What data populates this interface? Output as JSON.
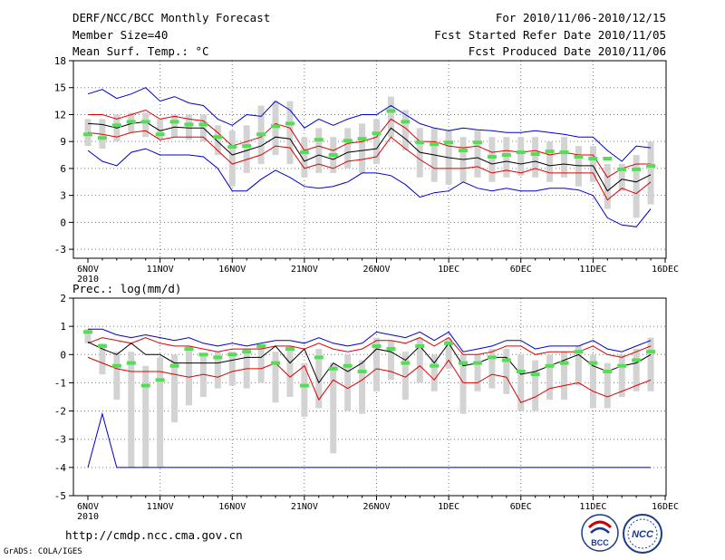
{
  "header": {
    "title": "DERF/NCC/BCC Monthly Forecast",
    "member_size": "Member Size=40",
    "variable": "Mean Surf. Temp.: °C",
    "period": "For 2010/11/06-2010/12/15",
    "fcst_started": "Fcst Started Refer Date 2010/11/05",
    "fcst_produced": "Fcst Produced Date 2010/11/06"
  },
  "footer": {
    "url": "http://cmdp.ncc.cma.gov.cn",
    "grads": "GrADS: COLA/IGES",
    "logo_bcc": "BCC",
    "logo_ncc": "NCC"
  },
  "colors": {
    "box": "#d3d3d3",
    "median": "#55dd55",
    "mean": "#000000",
    "std": "#dd0000",
    "extreme": "#0000cc"
  },
  "chart_data": [
    {
      "type": "line",
      "title": "Mean Surf. Temp.: °C",
      "ylim": [
        -4,
        18
      ],
      "yticks": [
        18,
        15,
        12,
        9,
        6,
        3,
        0,
        -3
      ],
      "xticks": [
        "6NOV",
        "11NOV",
        "16NOV",
        "21NOV",
        "26NOV",
        "1DEC",
        "6DEC",
        "11DEC",
        "16DEC"
      ],
      "year_label": "2010",
      "x_days": 40,
      "series": [
        {
          "name": "max",
          "values": [
            14.3,
            14.8,
            13.8,
            14.3,
            15,
            13.5,
            14,
            13.3,
            13,
            11.5,
            10.8,
            12,
            11.8,
            13.5,
            12.5,
            10.5,
            11.5,
            10.8,
            11.5,
            12,
            12,
            13,
            12,
            11,
            10.5,
            10.2,
            10.5,
            10.3,
            10.2,
            10,
            10,
            10.2,
            10,
            9.8,
            9.5,
            9.5,
            8,
            6.8,
            8.5,
            8.3
          ]
        },
        {
          "name": "mean_plus_std",
          "values": [
            12,
            12,
            11.5,
            12,
            12.5,
            11.5,
            11.8,
            11.5,
            11.3,
            10,
            8.5,
            9,
            9.5,
            11,
            10.5,
            8,
            8.5,
            8,
            8.8,
            9,
            9.5,
            11.5,
            10.5,
            9,
            9,
            8.5,
            8.3,
            8.5,
            7.8,
            8,
            7.8,
            8,
            7.5,
            7.8,
            7.5,
            7.5,
            5,
            6,
            6.5,
            6.5
          ]
        },
        {
          "name": "mean",
          "values": [
            11,
            10.9,
            10.5,
            11,
            11.2,
            10.2,
            10.6,
            10.5,
            10.5,
            9,
            7.5,
            8,
            8.5,
            9.5,
            9.3,
            6.8,
            7.5,
            7,
            7.8,
            8,
            8.2,
            10.5,
            9.3,
            7.8,
            7.5,
            7.2,
            7,
            7.2,
            6.5,
            6.8,
            6.5,
            6.8,
            6.3,
            6.5,
            6.3,
            6.3,
            3.5,
            4.8,
            4.5,
            5.3
          ]
        },
        {
          "name": "mean_minus_std",
          "values": [
            10,
            9.8,
            9.5,
            10,
            10.2,
            9.2,
            9.5,
            9.5,
            9.5,
            8,
            6.5,
            7,
            7.5,
            8.5,
            8.3,
            6,
            6.5,
            6,
            6.8,
            7,
            7.3,
            9.5,
            8.2,
            7,
            6,
            6,
            6,
            6.2,
            5.5,
            5.8,
            5.5,
            6,
            5.5,
            5.5,
            5.5,
            5.5,
            2.5,
            3.8,
            3.2,
            4.5
          ]
        },
        {
          "name": "min",
          "values": [
            8,
            6.8,
            6.3,
            7.8,
            8.2,
            7.5,
            7.5,
            7.5,
            7.3,
            6,
            3.5,
            3.5,
            4.8,
            5.8,
            5,
            4,
            3.8,
            4,
            4.5,
            5.5,
            5.5,
            5.2,
            4.2,
            2.8,
            3.3,
            3.5,
            4.5,
            3.8,
            3.5,
            3.8,
            3.5,
            3.5,
            3.8,
            3.8,
            3.6,
            3,
            0.5,
            -0.3,
            -0.5,
            1.5
          ]
        },
        {
          "name": "median",
          "values": [
            9.8,
            9.4,
            10.8,
            11.2,
            11.2,
            9.8,
            11.2,
            10.9,
            10.9,
            9.5,
            8.4,
            8.5,
            9.8,
            10.7,
            11,
            7.8,
            9.2,
            7.5,
            9.1,
            9.3,
            9.9,
            12.4,
            11.2,
            8.9,
            8.7,
            8.9,
            8,
            8.9,
            7.3,
            7.5,
            7.8,
            7.6,
            7.9,
            7.8,
            7.3,
            7.1,
            7.1,
            5.9,
            5.9,
            6.3
          ]
        }
      ],
      "boxes": [
        {
          "low": 8.5,
          "high": 11.5
        },
        {
          "low": 8.2,
          "high": 11.5
        },
        {
          "low": 9,
          "high": 12
        },
        {
          "low": 10,
          "high": 12.2
        },
        {
          "low": 9.5,
          "high": 12.2
        },
        {
          "low": 9.3,
          "high": 11.5
        },
        {
          "low": 9.5,
          "high": 12
        },
        {
          "low": 9.2,
          "high": 12
        },
        {
          "low": 9,
          "high": 12
        },
        {
          "low": 7.5,
          "high": 10.8
        },
        {
          "low": 4,
          "high": 10.2
        },
        {
          "low": 5.5,
          "high": 10.8
        },
        {
          "low": 6.5,
          "high": 13
        },
        {
          "low": 7.5,
          "high": 13.5
        },
        {
          "low": 6.5,
          "high": 13.5
        },
        {
          "low": 5,
          "high": 9.5
        },
        {
          "low": 5.5,
          "high": 10.5
        },
        {
          "low": 5.5,
          "high": 9.5
        },
        {
          "low": 6,
          "high": 10.5
        },
        {
          "low": 5.5,
          "high": 11
        },
        {
          "low": 6.5,
          "high": 11.5
        },
        {
          "low": 9.5,
          "high": 14
        },
        {
          "low": 8,
          "high": 12.5
        },
        {
          "low": 5,
          "high": 10.5
        },
        {
          "low": 4.5,
          "high": 10.5
        },
        {
          "low": 4.2,
          "high": 10.2
        },
        {
          "low": 4.5,
          "high": 9.5
        },
        {
          "low": 5,
          "high": 10.2
        },
        {
          "low": 4.5,
          "high": 9.5
        },
        {
          "low": 5,
          "high": 9.5
        },
        {
          "low": 5.2,
          "high": 9.5
        },
        {
          "low": 5,
          "high": 9.5
        },
        {
          "low": 4.5,
          "high": 9
        },
        {
          "low": 5,
          "high": 9.5
        },
        {
          "low": 4,
          "high": 8.5
        },
        {
          "low": 4.5,
          "high": 8.5
        },
        {
          "low": 1.5,
          "high": 6.5
        },
        {
          "low": 3.5,
          "high": 6.5
        },
        {
          "low": 0.5,
          "high": 7.5
        },
        {
          "low": 2,
          "high": 9
        }
      ]
    },
    {
      "type": "line",
      "title": "Prec.: log(mm/d)",
      "ylim": [
        -5,
        2
      ],
      "yticks": [
        2,
        1,
        0,
        -1,
        -2,
        -3,
        -4,
        -5
      ],
      "xticks": [
        "6NOV",
        "11NOV",
        "16NOV",
        "21NOV",
        "26NOV",
        "1DEC",
        "6DEC",
        "11DEC",
        "16DEC"
      ],
      "year_label": "2010",
      "x_days": 40,
      "series": [
        {
          "name": "max",
          "values": [
            0.9,
            0.9,
            0.7,
            0.6,
            0.7,
            0.6,
            0.5,
            0.6,
            0.4,
            0.3,
            0.4,
            0.3,
            0.4,
            0.5,
            0.5,
            0.4,
            0.6,
            0.4,
            0.3,
            0.4,
            0.8,
            0.7,
            0.6,
            0.8,
            0.5,
            0.8,
            0.1,
            0.2,
            0.3,
            0.5,
            0.5,
            0.2,
            0.3,
            0.3,
            0.3,
            0.5,
            0.2,
            0.1,
            0.3,
            0.5
          ]
        },
        {
          "name": "mean_plus_std",
          "values": [
            0.4,
            0.6,
            0.5,
            0.4,
            0.6,
            0.4,
            0.3,
            0.3,
            0.2,
            0.1,
            0.2,
            0.2,
            0.2,
            0.3,
            0.3,
            0.2,
            0.4,
            0.2,
            0.1,
            0.2,
            0.5,
            0.5,
            0.4,
            0.6,
            0.3,
            0.6,
            0,
            0,
            0.1,
            0.3,
            0.3,
            0,
            0.1,
            0.1,
            0.1,
            0.3,
            0,
            -0.1,
            0.1,
            0.3
          ]
        },
        {
          "name": "mean",
          "values": [
            0.45,
            0.2,
            0,
            0.4,
            0,
            0,
            -0.3,
            -0.3,
            -0.3,
            -0.3,
            -0.2,
            -0.1,
            -0.1,
            0.3,
            -0.3,
            0.2,
            -1,
            -0.3,
            -0.6,
            -0.3,
            0.2,
            0.1,
            -0.2,
            0.3,
            -0.3,
            0.4,
            -0.4,
            -0.3,
            -0.1,
            -0.1,
            -0.7,
            -0.6,
            -0.4,
            -0.2,
            0,
            -0.4,
            -0.6,
            -0.4,
            -0.3,
            0
          ]
        },
        {
          "name": "mean_minus_std",
          "values": [
            -0.1,
            -0.3,
            -0.5,
            -0.6,
            -0.6,
            -0.6,
            -0.7,
            -0.8,
            -0.7,
            -0.8,
            -0.6,
            -0.5,
            -0.5,
            -0.3,
            -0.8,
            -0.4,
            -1.6,
            -0.9,
            -1.2,
            -0.9,
            -0.5,
            -0.6,
            -0.8,
            -0.4,
            -0.9,
            -0.2,
            -1,
            -1,
            -0.7,
            -0.8,
            -1.7,
            -1.5,
            -1.2,
            -1.1,
            -1,
            -1.3,
            -1.5,
            -1.3,
            -1.1,
            -0.9
          ]
        },
        {
          "name": "min",
          "values": [
            -4,
            -2.1,
            -4,
            -4,
            -4,
            -4,
            -4,
            -4,
            -4,
            -4,
            -4,
            -4,
            -4,
            -4,
            -4,
            -4,
            -4,
            -4,
            -4,
            -4,
            -4,
            -4,
            -4,
            -4,
            -4,
            -4,
            -4,
            -4,
            -4,
            -4,
            -4,
            -4,
            -4,
            -4,
            -4,
            -4,
            -4,
            -4,
            -4,
            -4
          ]
        },
        {
          "name": "median",
          "values": [
            0.8,
            0.3,
            -0.4,
            -0.3,
            -1.1,
            -0.9,
            -0.4,
            0.2,
            0,
            -0.1,
            0,
            0.1,
            0.3,
            -0.3,
            0.2,
            -1.1,
            -0.1,
            -0.5,
            -0.4,
            -0.6,
            0.3,
            0.2,
            -0.3,
            0.3,
            -0.4,
            0.4,
            -0.3,
            -0.3,
            -0.1,
            -0.2,
            -0.6,
            -0.7,
            -0.4,
            -0.3,
            0.1,
            -0.3,
            -0.6,
            -0.4,
            -0.2,
            0.1
          ]
        }
      ],
      "boxes": [
        {
          "low": 0.4,
          "high": 0.9
        },
        {
          "low": -0.7,
          "high": 0.4
        },
        {
          "low": -1.6,
          "high": 0.1
        },
        {
          "low": -4,
          "high": 0.1
        },
        {
          "low": -4,
          "high": -0.4
        },
        {
          "low": -4,
          "high": -0.1
        },
        {
          "low": -2.4,
          "high": 0
        },
        {
          "low": -1.8,
          "high": 0.3
        },
        {
          "low": -1.5,
          "high": 0
        },
        {
          "low": -1.2,
          "high": 0.1
        },
        {
          "low": -1.1,
          "high": 0.1
        },
        {
          "low": -1.2,
          "high": 0.2
        },
        {
          "low": -1,
          "high": 0.3
        },
        {
          "low": -1.7,
          "high": 0.1
        },
        {
          "low": -1.5,
          "high": 0.3
        },
        {
          "low": -2.2,
          "high": -0.3
        },
        {
          "low": -1.9,
          "high": 0.2
        },
        {
          "low": -3.5,
          "high": -0.3
        },
        {
          "low": -2,
          "high": 0
        },
        {
          "low": -2.1,
          "high": -0.2
        },
        {
          "low": -1.3,
          "high": 0.6
        },
        {
          "low": -0.9,
          "high": 0.5
        },
        {
          "low": -1.6,
          "high": 0.1
        },
        {
          "low": -1,
          "high": 0.6
        },
        {
          "low": -1.3,
          "high": 0
        },
        {
          "low": -0.5,
          "high": 0.6
        },
        {
          "low": -2.1,
          "high": 0
        },
        {
          "low": -1.3,
          "high": 0
        },
        {
          "low": -1.2,
          "high": 0.2
        },
        {
          "low": -1.4,
          "high": 0.2
        },
        {
          "low": -2,
          "high": 0
        },
        {
          "low": -2,
          "high": -0.2
        },
        {
          "low": -1.6,
          "high": 0
        },
        {
          "low": -1.6,
          "high": 0.1
        },
        {
          "low": -1.1,
          "high": 0.3
        },
        {
          "low": -1.9,
          "high": 0
        },
        {
          "low": -1.9,
          "high": -0.3
        },
        {
          "low": -1.5,
          "high": 0
        },
        {
          "low": -1.3,
          "high": 0.2
        },
        {
          "low": -1.3,
          "high": 0.6
        }
      ]
    }
  ]
}
